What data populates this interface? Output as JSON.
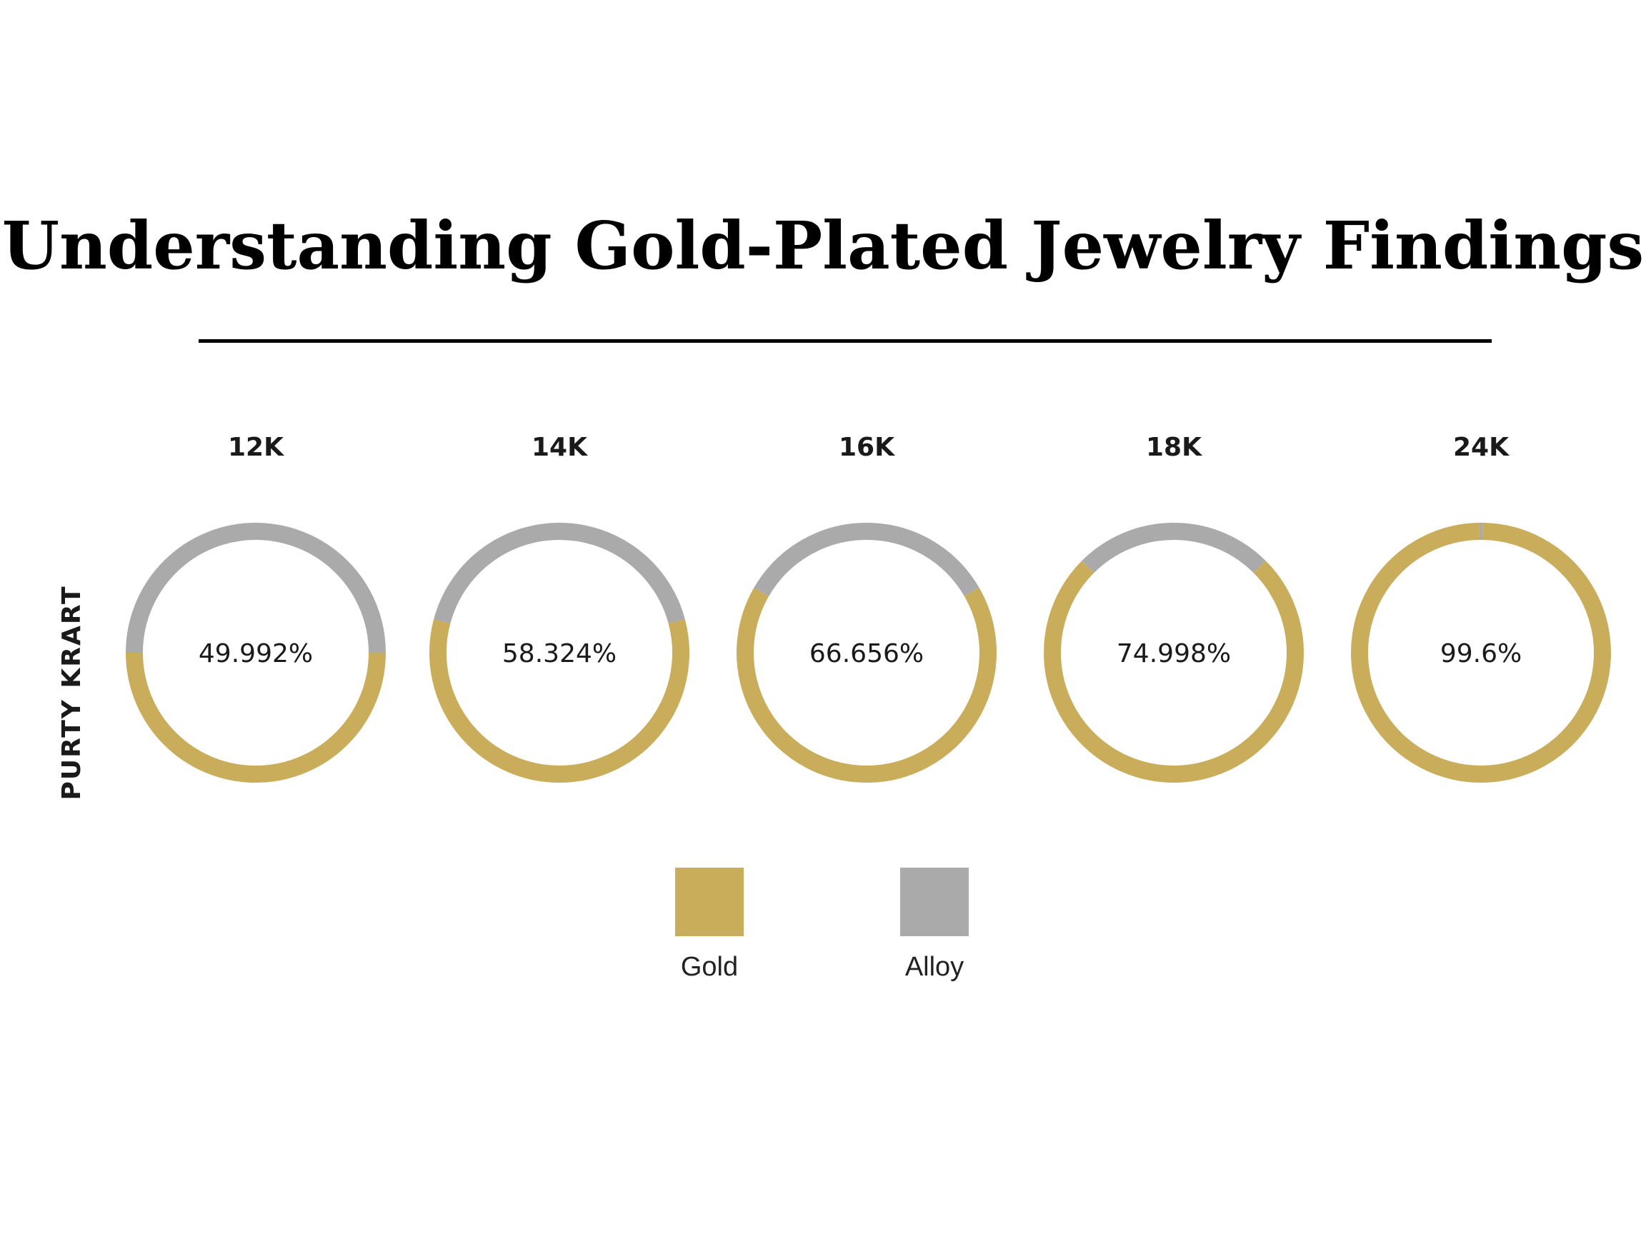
{
  "title": "Understanding Gold-Plated Jewelry Findings",
  "colors": {
    "gold": "#c9ad5b",
    "alloy": "#aaaaaa"
  },
  "chart_data": {
    "type": "donut",
    "ylabel": "PURTY KRART",
    "categories": [
      "12K",
      "14K",
      "16K",
      "18K",
      "24K"
    ],
    "series": [
      {
        "name": "Gold",
        "values": [
          49.992,
          58.324,
          66.656,
          74.998,
          99.6
        ]
      },
      {
        "name": "Alloy",
        "values": [
          50.008,
          41.676,
          33.344,
          25.002,
          0.4
        ]
      }
    ],
    "labels": [
      "49.992%",
      "58.324%",
      "66.656%",
      "74.998%",
      "99.6%"
    ],
    "legend": {
      "position": "bottom",
      "entries": [
        "Gold",
        "Alloy"
      ]
    }
  }
}
